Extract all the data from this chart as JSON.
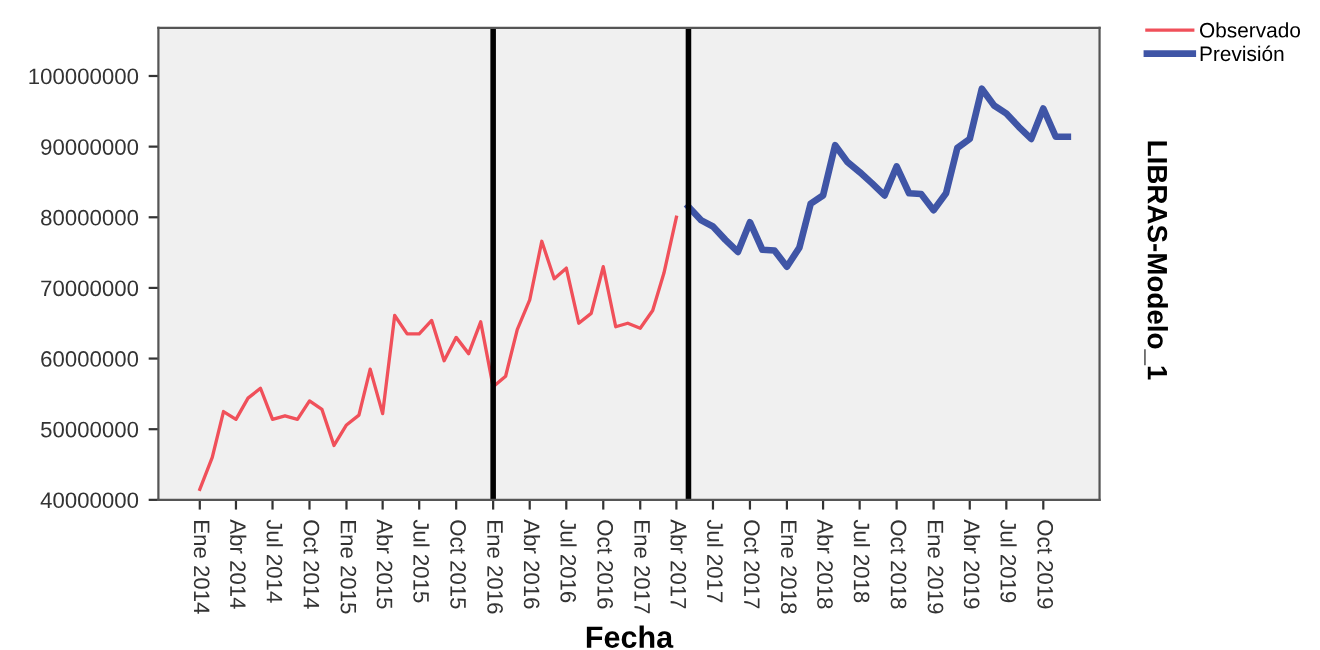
{
  "chart_data": {
    "type": "line",
    "xlabel": "Fecha",
    "y2label": "LIBRAS-Modelo_1",
    "series": [
      {
        "name": "Observado",
        "color": "#f0505a",
        "x": [
          "2014-01",
          "2014-02",
          "2014-03",
          "2014-04",
          "2014-05",
          "2014-06",
          "2014-07",
          "2014-08",
          "2014-09",
          "2014-10",
          "2014-11",
          "2014-12",
          "2015-01",
          "2015-02",
          "2015-03",
          "2015-04",
          "2015-05",
          "2015-06",
          "2015-07",
          "2015-08",
          "2015-09",
          "2015-10",
          "2015-11",
          "2015-12",
          "2016-01",
          "2016-02",
          "2016-03",
          "2016-04",
          "2016-05",
          "2016-06",
          "2016-07",
          "2016-08",
          "2016-09",
          "2016-10",
          "2016-11",
          "2016-12",
          "2017-01",
          "2017-02",
          "2017-03",
          "2017-04"
        ],
        "values": [
          41500000,
          46000000,
          52500000,
          51400000,
          54400000,
          55800000,
          51400000,
          51900000,
          51400000,
          54000000,
          52800000,
          47700000,
          50600000,
          52000000,
          58500000,
          52200000,
          66100000,
          63500000,
          63500000,
          65400000,
          59700000,
          63000000,
          60700000,
          65200000,
          56000000,
          57500000,
          64100000,
          68300000,
          76600000,
          71300000,
          72800000,
          65000000,
          66400000,
          73000000,
          64500000,
          65000000,
          64300000,
          66800000,
          72100000,
          80000000
        ]
      },
      {
        "name": "Previsión",
        "color": "#3f55a6",
        "x": [
          "2017-05",
          "2017-06",
          "2017-07",
          "2017-08",
          "2017-09",
          "2017-10",
          "2017-11",
          "2017-12",
          "2018-01",
          "2018-02",
          "2018-03",
          "2018-04",
          "2018-05",
          "2018-06",
          "2018-07",
          "2018-08",
          "2018-09",
          "2018-10",
          "2018-11",
          "2018-12",
          "2019-01",
          "2019-02",
          "2019-03",
          "2019-04",
          "2019-05",
          "2019-06",
          "2019-07",
          "2019-08",
          "2019-09",
          "2019-10",
          "2019-11",
          "2019-12"
        ],
        "values": [
          81500000,
          79600000,
          78700000,
          76800000,
          75100000,
          79300000,
          75400000,
          75300000,
          73000000,
          75700000,
          81900000,
          83100000,
          90200000,
          87800000,
          86400000,
          84800000,
          83100000,
          87200000,
          83400000,
          83300000,
          81000000,
          83400000,
          89800000,
          91100000,
          98200000,
          95800000,
          94700000,
          92800000,
          91100000,
          95400000,
          91400000,
          91400000
        ]
      }
    ],
    "xlim": [
      "2013-09-20",
      "2020-02-18"
    ],
    "xticks": [
      {
        "value": "2014-01",
        "label": "Ene 2014"
      },
      {
        "value": "2014-04",
        "label": "Abr 2014"
      },
      {
        "value": "2014-07",
        "label": "Jul 2014"
      },
      {
        "value": "2014-10",
        "label": "Oct 2014"
      },
      {
        "value": "2015-01",
        "label": "Ene 2015"
      },
      {
        "value": "2015-04",
        "label": "Abr 2015"
      },
      {
        "value": "2015-07",
        "label": "Jul 2015"
      },
      {
        "value": "2015-10",
        "label": "Oct 2015"
      },
      {
        "value": "2016-01",
        "label": "Ene 2016"
      },
      {
        "value": "2016-04",
        "label": "Abr 2016"
      },
      {
        "value": "2016-07",
        "label": "Jul 2016"
      },
      {
        "value": "2016-10",
        "label": "Oct 2016"
      },
      {
        "value": "2017-01",
        "label": "Ene 2017"
      },
      {
        "value": "2017-04",
        "label": "Abr 2017"
      },
      {
        "value": "2017-07",
        "label": "Jul 2017"
      },
      {
        "value": "2017-10",
        "label": "Oct 2017"
      },
      {
        "value": "2018-01",
        "label": "Ene 2018"
      },
      {
        "value": "2018-04",
        "label": "Abr 2018"
      },
      {
        "value": "2018-07",
        "label": "Jul 2018"
      },
      {
        "value": "2018-10",
        "label": "Oct 2018"
      },
      {
        "value": "2019-01",
        "label": "Ene 2019"
      },
      {
        "value": "2019-04",
        "label": "Abr 2019"
      },
      {
        "value": "2019-07",
        "label": "Jul 2019"
      },
      {
        "value": "2019-10",
        "label": "Oct 2019"
      }
    ],
    "ylim": [
      40000000,
      106800000
    ],
    "yticks": [
      40000000,
      50000000,
      60000000,
      70000000,
      80000000,
      90000000,
      100000000
    ],
    "ref_lines": [
      {
        "axis": "x",
        "value": "2016-01",
        "color": "#000000"
      },
      {
        "axis": "x",
        "value": "2017-05",
        "color": "#000000"
      }
    ],
    "legend": "top right",
    "grid": false
  }
}
